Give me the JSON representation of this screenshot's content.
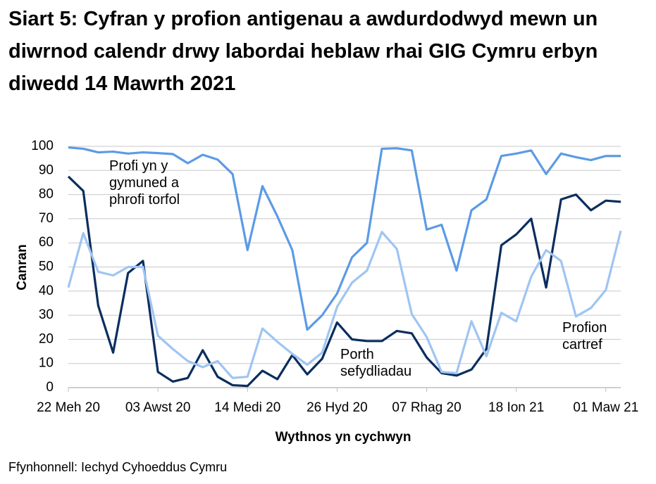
{
  "chart_data": {
    "type": "line",
    "title": "Siart 5: Cyfran y profion antigenau a awdurdodwyd mewn un diwrnod calendr drwy labordai heblaw rhai GIG Cymru erbyn diwedd 14 Mawrth 2021",
    "y_label": "Canran",
    "x_label": "Wythnos yn cychwyn",
    "source": "Ffynhonnell: Iechyd Cyhoeddus Cymru",
    "categories": [
      "22 Meh 20",
      null,
      null,
      null,
      null,
      null,
      "03 Awst 20",
      null,
      null,
      null,
      null,
      null,
      "14 Medi 20",
      null,
      null,
      null,
      null,
      null,
      "26 Hyd 20",
      null,
      null,
      null,
      null,
      null,
      "07 Rhag 20",
      null,
      null,
      null,
      null,
      null,
      "18 Ion 21",
      null,
      null,
      null,
      null,
      null,
      "01 Maw 21",
      null
    ],
    "ylim": [
      0,
      100
    ],
    "yticks": [
      0,
      10,
      20,
      30,
      40,
      50,
      60,
      70,
      80,
      90,
      100
    ],
    "grid": true,
    "series": [
      {
        "name": "Profi yn y gymuned a phrofi torfol",
        "color": "#5b9be6",
        "values": [
          99.5,
          99,
          97.5,
          97.8,
          97,
          97.5,
          97.2,
          96.8,
          93,
          96.5,
          94.5,
          88.5,
          57,
          83.5,
          71,
          57,
          24,
          30,
          39,
          54,
          60,
          99,
          99.2,
          98.3,
          65.5,
          67.5,
          48.5,
          73.5,
          78,
          96,
          97,
          98.3,
          88.5,
          97,
          95.5,
          94.3,
          96,
          96
        ]
      },
      {
        "name": "Porth sefydliadau",
        "color": "#0b2d5e",
        "values": [
          87.5,
          81.5,
          34,
          14.5,
          47.5,
          52.5,
          6.5,
          2.5,
          4,
          15.5,
          4.5,
          1,
          0.7,
          7,
          3.5,
          13.5,
          5.5,
          12,
          27,
          20,
          19.3,
          19.3,
          23.5,
          22.5,
          12.5,
          6,
          5,
          7.5,
          16,
          59,
          63.5,
          70,
          41.5,
          78,
          80,
          73.5,
          77.5,
          77
        ]
      },
      {
        "name": "Profion cartref",
        "color": "#9fc5f2",
        "values": [
          41.5,
          64,
          48,
          46.5,
          50,
          50,
          21.5,
          16,
          11,
          8.5,
          11,
          4,
          4.5,
          24.5,
          19,
          14,
          9.5,
          14.5,
          33.5,
          43.5,
          48.5,
          64.5,
          57.5,
          30.5,
          21,
          6.5,
          6,
          27.5,
          13,
          31,
          27.5,
          46,
          57,
          52.5,
          29.5,
          33,
          40.5,
          65
        ]
      }
    ]
  }
}
